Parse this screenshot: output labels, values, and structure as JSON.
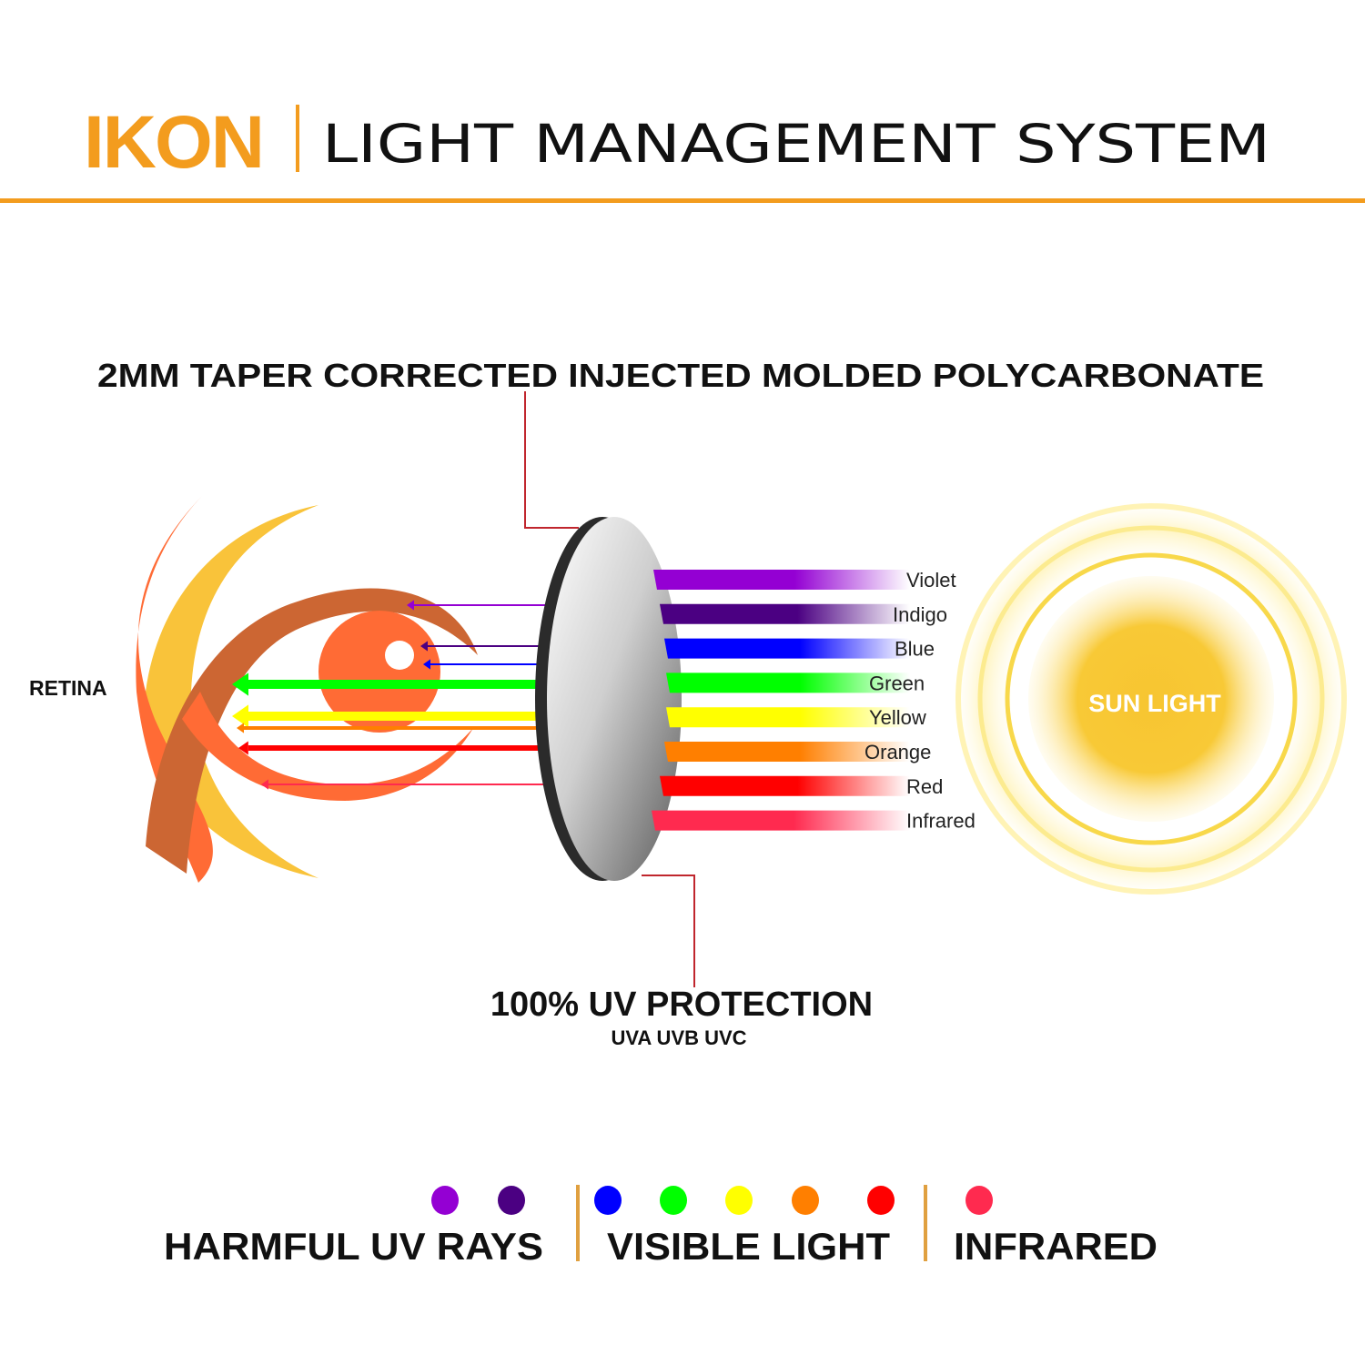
{
  "header": {
    "brand": "IKON",
    "subtitle": "LIGHT MANAGEMENT SYSTEM",
    "brand_color": "#F39C1E"
  },
  "callouts": {
    "lens_material": "2MM TAPER CORRECTED INJECTED MOLDED POLYCARBONATE",
    "uv_protection": "100% UV PROTECTION",
    "uv_types": "UVA UVB UVC",
    "leader_color": "#C0262D"
  },
  "eye": {
    "label": "RETINA"
  },
  "sun": {
    "label": "SUN LIGHT",
    "color": "#F7C531"
  },
  "spectrum": [
    {
      "label": "Violet",
      "color": "#9400D3"
    },
    {
      "label": "Indigo",
      "color": "#4B0082"
    },
    {
      "label": "Blue",
      "color": "#0000FF"
    },
    {
      "label": "Green",
      "color": "#00FF00"
    },
    {
      "label": "Yellow",
      "color": "#FFFF00"
    },
    {
      "label": "Orange",
      "color": "#FF7F00"
    },
    {
      "label": "Red",
      "color": "#FF0000"
    },
    {
      "label": "Infrared",
      "color": "#FF2A4F"
    }
  ],
  "legend": {
    "groups": [
      {
        "label": "HARMFUL UV RAYS",
        "colors": [
          "#9400D3",
          "#4B0082"
        ]
      },
      {
        "label": "VISIBLE LIGHT",
        "colors": [
          "#0000FF",
          "#00FF00",
          "#FFFF00",
          "#FF7F00",
          "#FF0000"
        ]
      },
      {
        "label": "INFRARED",
        "colors": [
          "#FF2A4F"
        ]
      }
    ],
    "separator_color": "#E0A040"
  }
}
